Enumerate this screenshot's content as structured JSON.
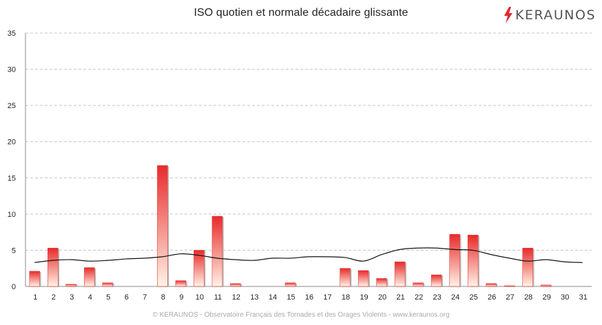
{
  "header": {
    "title": "ISO quotien et normale décadaire glissante",
    "logo_text": "KERAUNOS",
    "logo_icon": "lightning-bolt-icon",
    "logo_color": "#e0282e"
  },
  "footer": {
    "text": "© KERAUNOS - Observatoire Français des Tornades et des Orages Violents - www.keraunos.org"
  },
  "chart_data": {
    "type": "bar",
    "categories": [
      "1",
      "2",
      "3",
      "4",
      "5",
      "6",
      "7",
      "8",
      "9",
      "10",
      "11",
      "12",
      "13",
      "14",
      "15",
      "16",
      "17",
      "18",
      "19",
      "20",
      "21",
      "22",
      "23",
      "24",
      "25",
      "26",
      "27",
      "28",
      "29",
      "30",
      "31"
    ],
    "series": [
      {
        "type": "bar",
        "color": "#e82a2a",
        "values": [
          2.1,
          5.3,
          0.3,
          2.6,
          0.5,
          0,
          0,
          16.7,
          0.8,
          5.0,
          9.7,
          0.4,
          0,
          0,
          0.5,
          0,
          0,
          2.5,
          2.2,
          1.1,
          3.4,
          0.5,
          1.6,
          7.2,
          7.1,
          0.4,
          0.1,
          5.3,
          0.2,
          0,
          0
        ]
      },
      {
        "type": "line",
        "color": "#111111",
        "values": [
          3.3,
          3.6,
          3.7,
          3.5,
          3.6,
          3.8,
          3.9,
          4.1,
          4.5,
          4.3,
          3.9,
          3.7,
          3.6,
          3.9,
          3.9,
          4.1,
          4.1,
          4.0,
          3.5,
          4.4,
          5.1,
          5.3,
          5.3,
          5.1,
          5.0,
          4.4,
          3.9,
          3.5,
          3.7,
          3.4,
          3.3
        ]
      }
    ],
    "ylim": [
      0,
      35
    ],
    "yticks": [
      0,
      5,
      10,
      15,
      20,
      25,
      30,
      35
    ],
    "grid": true
  }
}
